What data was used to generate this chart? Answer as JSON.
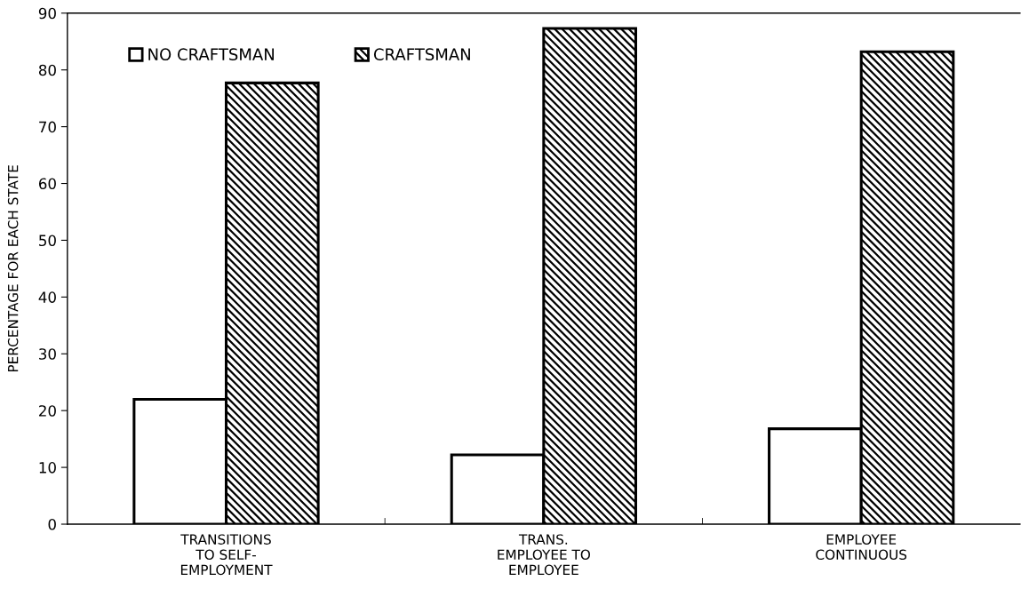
{
  "chart_data": {
    "type": "bar",
    "ylabel": "PERCENTAGE FOR EACH STATE",
    "categories": [
      "TRANSITIONS\nTO SELF-\nEMPLOYMENT",
      "TRANS.\nEMPLOYEE TO\nEMPLOYEE",
      "EMPLOYEE\nCONTINUOUS"
    ],
    "series": [
      {
        "name": "NO CRAFTSMAN",
        "color": "#ffffff",
        "values": [
          22,
          12.2,
          16.8
        ]
      },
      {
        "name": "CRAFTSMAN",
        "color": "#000000",
        "values": [
          77.7,
          87.3,
          83.2
        ]
      }
    ],
    "ylim": [
      0,
      90
    ],
    "yticks": [
      0,
      10,
      20,
      30,
      40,
      50,
      60,
      70,
      80,
      90
    ],
    "grid": false,
    "legend": "top left"
  }
}
